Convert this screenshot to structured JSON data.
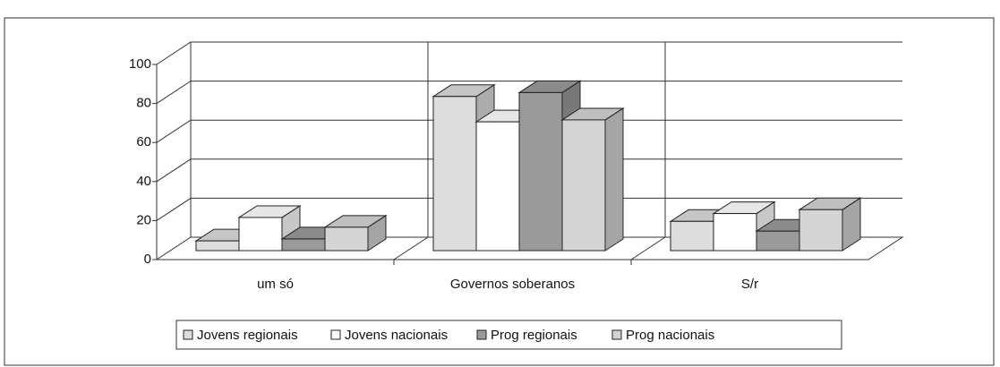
{
  "chart_data": {
    "type": "bar3d",
    "categories": [
      "um só",
      "Governos soberanos",
      "S/r"
    ],
    "series": [
      {
        "name": "Jovens regionais",
        "color": "#dcdcdc",
        "values": [
          5,
          79,
          15
        ]
      },
      {
        "name": "Jovens nacionais",
        "color": "#ffffff",
        "values": [
          17,
          66,
          19
        ]
      },
      {
        "name": "Prog regionais",
        "color": "#9a9a9a",
        "values": [
          6,
          81,
          10
        ]
      },
      {
        "name": "Prog nacionais",
        "color": "#d4d4d4",
        "values": [
          12,
          67,
          21
        ]
      }
    ],
    "ylim": [
      0,
      100
    ],
    "yticks": [
      0,
      20,
      40,
      60,
      80,
      100
    ],
    "grid": true,
    "legend": "bottom"
  }
}
